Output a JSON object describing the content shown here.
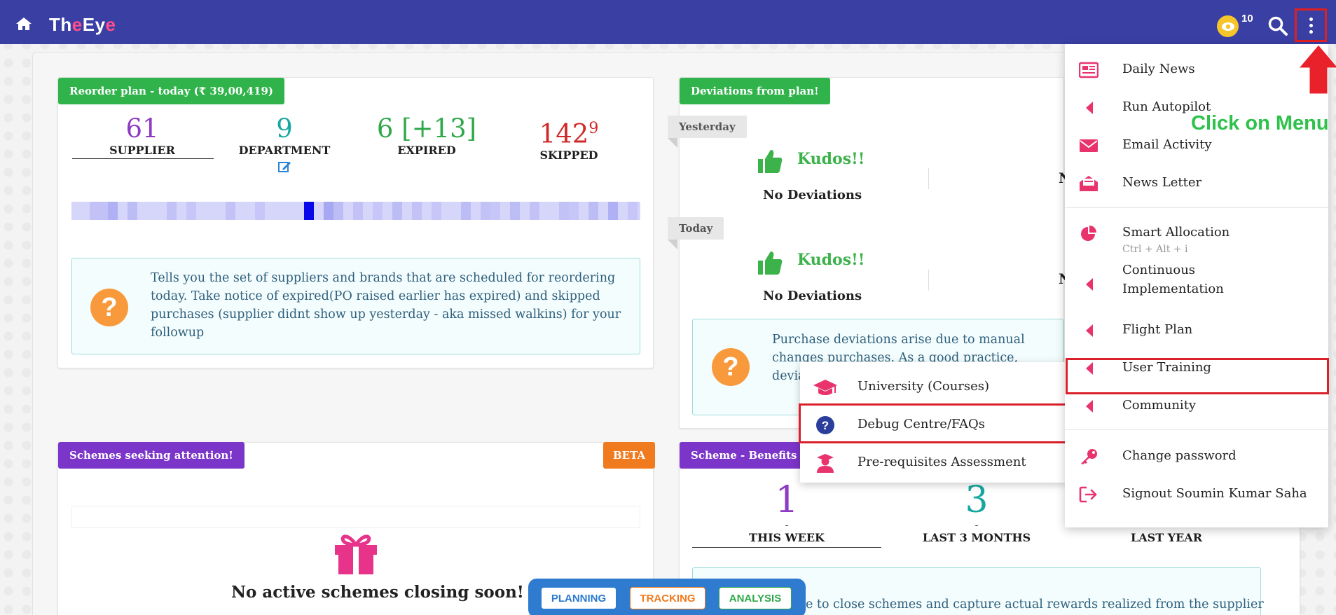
{
  "app": {
    "logo_a": "Th",
    "logo_e": "e",
    "logo_b": "Ey",
    "logo_e2": "e",
    "coin_count": "10"
  },
  "reorder": {
    "tag": "Reorder plan - today (₹ 39,00,419)",
    "stats": [
      {
        "value": "61",
        "label": "SUPPLIER",
        "color": "#8e3bc4"
      },
      {
        "value": "9",
        "label": "DEPARTMENT",
        "color": "#17a6a0"
      },
      {
        "value": "6 [+13]",
        "label": "EXPIRED",
        "color": "#2fa84a"
      },
      {
        "value": "142",
        "sup": "9",
        "label": "SKIPPED",
        "color": "#d02828"
      }
    ],
    "info": "Tells you the set of suppliers and brands that are scheduled for reordering today. Take notice of expired(PO raised earlier has expired) and skipped purchases (supplier didnt show up yesterday - aka missed walkins) for your followup"
  },
  "deviations": {
    "tag": "Deviations from plan!",
    "yesterday": "Yesterday",
    "today": "Today",
    "kudos": "Kudos!!",
    "no_dev": "No Deviations",
    "n_cut": "N",
    "info": "Purchase deviations arise due to manual changes purchases. As a good practice, deviations should b reaso raisi"
  },
  "schemes": {
    "tag": "Schemes seeking attention!",
    "beta": "BETA",
    "empty": "No active schemes closing soon!"
  },
  "benefits": {
    "tag": "Scheme - Benefits",
    "periods": [
      {
        "value": "1",
        "label": "THIS WEEK",
        "color": "#8e3bc4"
      },
      {
        "value": "3",
        "label": "LAST 3 MONTHS",
        "color": "#17a6a0"
      },
      {
        "value": "",
        "label": "LAST YEAR",
        "color": "#2fa84a"
      }
    ],
    "dash": "-",
    "info": "e to close schemes and capture actual rewards realized from the supplier"
  },
  "menu": {
    "items": [
      {
        "label": "Daily News",
        "icon": "newspaper-icon"
      },
      {
        "label": "Run Autopilot",
        "icon": "caret-left-icon"
      },
      {
        "label": "Email Activity",
        "icon": "envelope-icon"
      },
      {
        "label": "News Letter",
        "icon": "mail-open-icon"
      },
      {
        "label": "Smart Allocation",
        "sub": "Ctrl + Alt + i",
        "icon": "pie-chart-icon"
      },
      {
        "label": "Continuous",
        "label2": "Implementation",
        "icon": "caret-left-icon"
      },
      {
        "label": "Flight Plan",
        "icon": "caret-left-icon"
      },
      {
        "label": "User Training",
        "icon": "caret-left-icon"
      },
      {
        "label": "Community",
        "icon": "caret-left-icon"
      },
      {
        "label": "Change password",
        "icon": "key-icon"
      },
      {
        "label": "Signout Soumin Kumar Saha",
        "icon": "signout-icon"
      }
    ]
  },
  "submenu": {
    "items": [
      {
        "label": "University (Courses)",
        "icon": "graduation-cap-icon"
      },
      {
        "label": "Debug Centre/FAQs",
        "icon": "question-circle-icon"
      },
      {
        "label": "Pre-requisites Assessment",
        "icon": "graduate-user-icon"
      }
    ]
  },
  "annotation": {
    "text": "Click on Menu"
  },
  "bottom_nav": {
    "planning": "PLANNING",
    "tracking": "TRACKING",
    "analysis": "ANALYSIS"
  }
}
